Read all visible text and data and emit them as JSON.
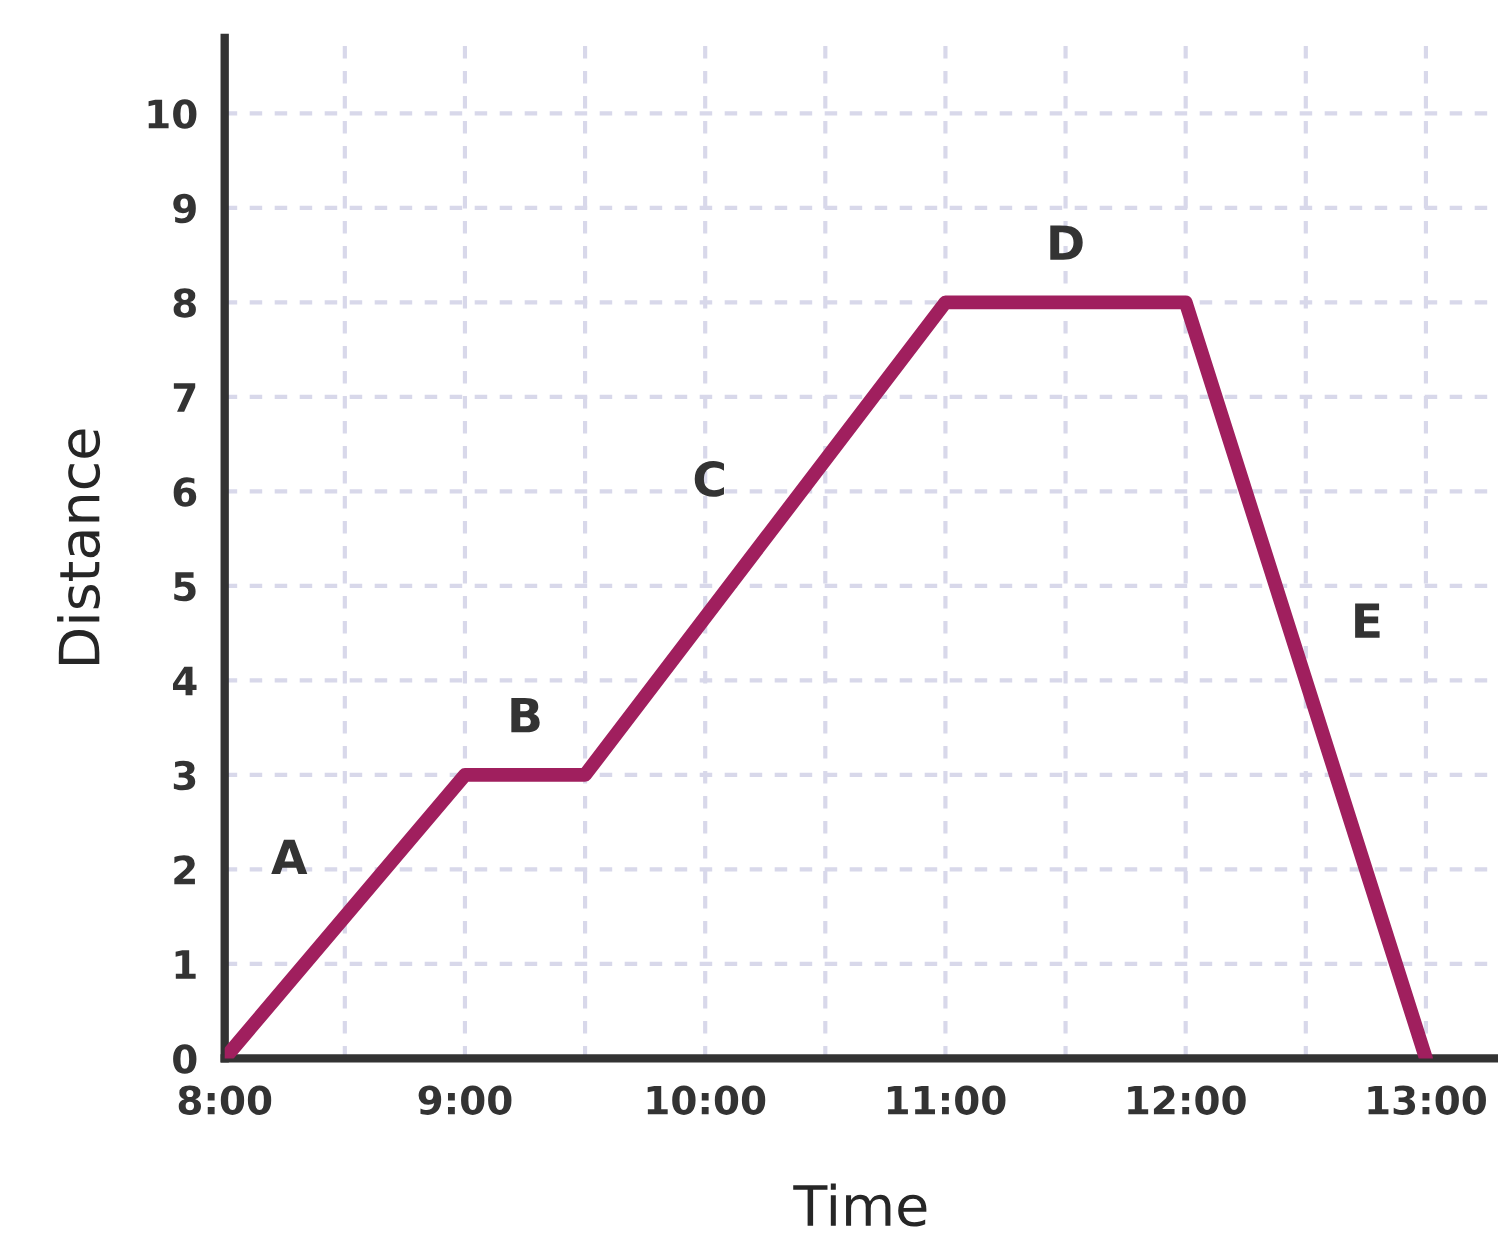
{
  "chart_data": {
    "type": "line",
    "xlabel": "Time",
    "ylabel": "Distance",
    "x": [
      8,
      9,
      9.5,
      11,
      12,
      13
    ],
    "series": [
      {
        "color": "#a01f5e",
        "values": [
          0,
          3,
          3,
          8,
          8,
          0
        ]
      }
    ],
    "xlim": [
      8,
      13.3
    ],
    "ylim": [
      0,
      10.8
    ],
    "xticks": [
      {
        "value": 8,
        "label": "8:00"
      },
      {
        "value": 8.5,
        "label": null
      },
      {
        "value": 9,
        "label": "9:00"
      },
      {
        "value": 9.5,
        "label": null
      },
      {
        "value": 10,
        "label": "10:00"
      },
      {
        "value": 10.5,
        "label": null
      },
      {
        "value": 11,
        "label": "11:00"
      },
      {
        "value": 11.5,
        "label": null
      },
      {
        "value": 12,
        "label": "12:00"
      },
      {
        "value": 12.5,
        "label": null
      },
      {
        "value": 13,
        "label": "13:00"
      }
    ],
    "yticks": [
      0,
      1,
      2,
      3,
      4,
      5,
      6,
      7,
      8,
      9,
      10
    ],
    "grid": true,
    "marker": "none",
    "line_style": "solid",
    "annotations": [
      "A",
      "B",
      "C",
      "D",
      "E"
    ]
  }
}
